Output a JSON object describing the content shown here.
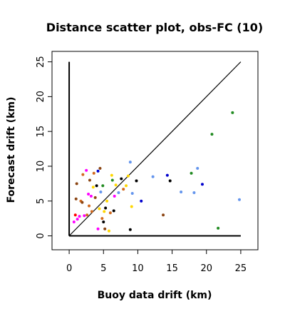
{
  "chart_data": {
    "type": "scatter",
    "title": "Distance scatter plot, obs-FC (10)",
    "xlabel": "Buoy data drift (km)",
    "ylabel": "Forecast drift (km)",
    "xlim": [
      -2.5,
      27.5
    ],
    "ylim": [
      -2,
      26.5
    ],
    "xticks": [
      "0",
      "5",
      "10",
      "15",
      "20",
      "25"
    ],
    "yticks": [
      "0",
      "5",
      "10",
      "15",
      "20",
      "25"
    ],
    "grid": false,
    "legend": "none",
    "reference_lines": [
      {
        "kind": "diagonal",
        "points": [
          [
            0,
            0
          ],
          [
            25,
            25
          ]
        ]
      },
      {
        "kind": "x-axis",
        "points": [
          [
            0,
            0
          ],
          [
            25,
            0
          ]
        ]
      },
      {
        "kind": "y-axis",
        "points": [
          [
            0,
            0
          ],
          [
            0,
            25
          ]
        ]
      }
    ],
    "points": [
      {
        "x": 0.7,
        "y": 2.0,
        "color": "#ff00ff"
      },
      {
        "x": 0.9,
        "y": 3.0,
        "color": "#ff0000"
      },
      {
        "x": 1.0,
        "y": 5.3,
        "color": "#8b4513"
      },
      {
        "x": 1.1,
        "y": 7.5,
        "color": "#8b4513"
      },
      {
        "x": 1.2,
        "y": 2.4,
        "color": "#ff00ff"
      },
      {
        "x": 1.5,
        "y": 2.8,
        "color": "#ff00ff"
      },
      {
        "x": 1.7,
        "y": 5.0,
        "color": "#d2691e"
      },
      {
        "x": 1.9,
        "y": 4.8,
        "color": "#8b4513"
      },
      {
        "x": 2.0,
        "y": 8.8,
        "color": "#d2691e"
      },
      {
        "x": 2.2,
        "y": 2.9,
        "color": "#ff00ff"
      },
      {
        "x": 2.5,
        "y": 9.4,
        "color": "#ff00ff"
      },
      {
        "x": 2.6,
        "y": 3.0,
        "color": "#d2691e"
      },
      {
        "x": 2.8,
        "y": 6.0,
        "color": "#ff00ff"
      },
      {
        "x": 2.9,
        "y": 4.3,
        "color": "#d2691e"
      },
      {
        "x": 3.0,
        "y": 8.0,
        "color": "#8b4513"
      },
      {
        "x": 3.2,
        "y": 5.7,
        "color": "#ff00ff"
      },
      {
        "x": 3.3,
        "y": 3.5,
        "color": "#d2691e"
      },
      {
        "x": 3.5,
        "y": 7.0,
        "color": "#ffd700"
      },
      {
        "x": 3.6,
        "y": 9.0,
        "color": "#d2691e"
      },
      {
        "x": 3.8,
        "y": 5.5,
        "color": "#8b4513"
      },
      {
        "x": 4.0,
        "y": 7.2,
        "color": "#000000"
      },
      {
        "x": 4.2,
        "y": 9.3,
        "color": "#0000cd"
      },
      {
        "x": 4.2,
        "y": 1.0,
        "color": "#ff00ff"
      },
      {
        "x": 4.4,
        "y": 3.9,
        "color": "#ffd700"
      },
      {
        "x": 4.5,
        "y": 9.7,
        "color": "#8b4513"
      },
      {
        "x": 4.6,
        "y": 6.3,
        "color": "#6495ed"
      },
      {
        "x": 4.8,
        "y": 2.5,
        "color": "#d2691e"
      },
      {
        "x": 4.9,
        "y": 7.2,
        "color": "#228b22"
      },
      {
        "x": 5.0,
        "y": 2.0,
        "color": "#000000"
      },
      {
        "x": 5.1,
        "y": 3.5,
        "color": "#ffd700"
      },
      {
        "x": 5.2,
        "y": 1.0,
        "color": "#8b4513"
      },
      {
        "x": 5.3,
        "y": 4.0,
        "color": "#000000"
      },
      {
        "x": 5.5,
        "y": 5.0,
        "color": "#ffd700"
      },
      {
        "x": 5.8,
        "y": 0.7,
        "color": "#ffd700"
      },
      {
        "x": 6.0,
        "y": 3.3,
        "color": "#d2691e"
      },
      {
        "x": 6.2,
        "y": 8.7,
        "color": "#ffd700"
      },
      {
        "x": 6.3,
        "y": 8.0,
        "color": "#228b22"
      },
      {
        "x": 6.5,
        "y": 3.6,
        "color": "#000000"
      },
      {
        "x": 6.6,
        "y": 5.7,
        "color": "#ff00ff"
      },
      {
        "x": 6.8,
        "y": 7.3,
        "color": "#ffd700"
      },
      {
        "x": 7.2,
        "y": 6.2,
        "color": "#6495ed"
      },
      {
        "x": 7.6,
        "y": 8.2,
        "color": "#000000"
      },
      {
        "x": 7.9,
        "y": 6.7,
        "color": "#d2691e"
      },
      {
        "x": 8.3,
        "y": 7.2,
        "color": "#ffd700"
      },
      {
        "x": 8.6,
        "y": 8.6,
        "color": "#ffd700"
      },
      {
        "x": 8.9,
        "y": 10.6,
        "color": "#6495ed"
      },
      {
        "x": 8.9,
        "y": 0.9,
        "color": "#000000"
      },
      {
        "x": 9.1,
        "y": 4.2,
        "color": "#ffd700"
      },
      {
        "x": 9.2,
        "y": 6.1,
        "color": "#6495ed"
      },
      {
        "x": 9.8,
        "y": 7.9,
        "color": "#000000"
      },
      {
        "x": 10.5,
        "y": 5.0,
        "color": "#0000cd"
      },
      {
        "x": 12.2,
        "y": 8.5,
        "color": "#6495ed"
      },
      {
        "x": 13.7,
        "y": 3.0,
        "color": "#8b4513"
      },
      {
        "x": 14.3,
        "y": 8.7,
        "color": "#0000cd"
      },
      {
        "x": 14.7,
        "y": 7.9,
        "color": "#000000"
      },
      {
        "x": 16.3,
        "y": 6.3,
        "color": "#6495ed"
      },
      {
        "x": 17.8,
        "y": 9.0,
        "color": "#228b22"
      },
      {
        "x": 18.2,
        "y": 6.2,
        "color": "#6495ed"
      },
      {
        "x": 18.7,
        "y": 9.7,
        "color": "#6495ed"
      },
      {
        "x": 19.4,
        "y": 7.4,
        "color": "#0000cd"
      },
      {
        "x": 20.8,
        "y": 14.6,
        "color": "#228b22"
      },
      {
        "x": 21.7,
        "y": 1.1,
        "color": "#228b22"
      },
      {
        "x": 23.8,
        "y": 17.7,
        "color": "#228b22"
      },
      {
        "x": 24.8,
        "y": 5.2,
        "color": "#6495ed"
      }
    ]
  }
}
